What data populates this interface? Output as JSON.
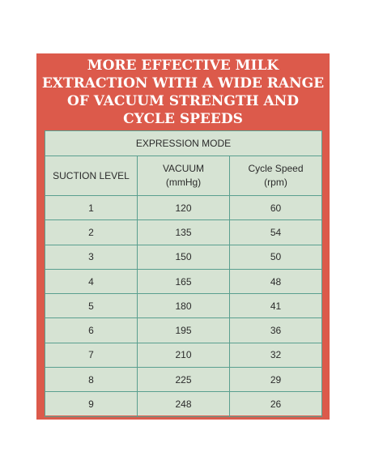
{
  "title_lines": [
    "MORE EFFECTIVE MILK",
    "EXTRACTION WITH A WIDE RANGE",
    "OF VACUUM STRENGTH AND",
    "CYCLE SPEEDS"
  ],
  "colors": {
    "card_background": "#dc5a4b",
    "table_background": "#d6e3d3",
    "table_border": "#5a9f8f",
    "title_text": "#ffffff"
  },
  "table": {
    "mode_header": "EXPRESSION MODE",
    "columns": [
      {
        "line1": "SUCTION LEVEL",
        "line2": ""
      },
      {
        "line1": "VACUUM",
        "line2": "(mmHg)"
      },
      {
        "line1": "Cycle Speed",
        "line2": "(rpm)"
      }
    ],
    "rows": [
      [
        "1",
        "120",
        "60"
      ],
      [
        "2",
        "135",
        "54"
      ],
      [
        "3",
        "150",
        "50"
      ],
      [
        "4",
        "165",
        "48"
      ],
      [
        "5",
        "180",
        "41"
      ],
      [
        "6",
        "195",
        "36"
      ],
      [
        "7",
        "210",
        "32"
      ],
      [
        "8",
        "225",
        "29"
      ],
      [
        "9",
        "248",
        "26"
      ]
    ]
  }
}
